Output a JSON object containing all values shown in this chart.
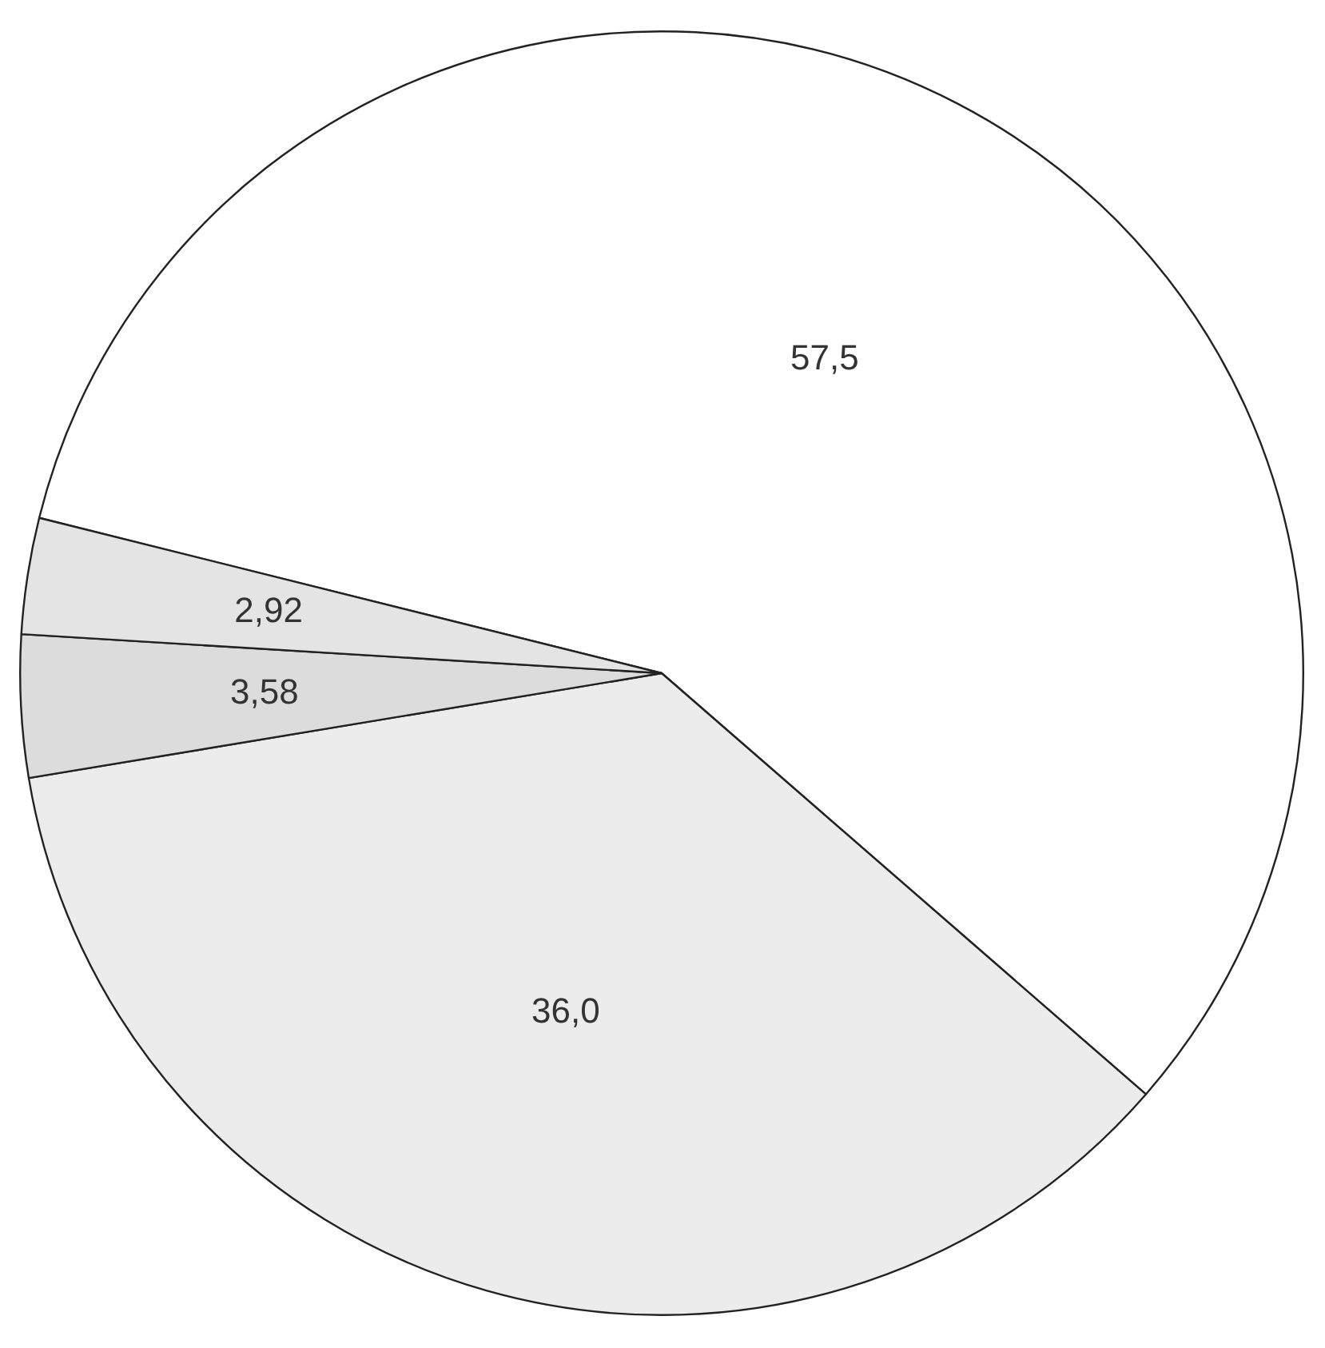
{
  "chart_data": {
    "type": "pie",
    "categories": [
      null,
      null,
      null,
      null
    ],
    "values": [
      57.5,
      36.0,
      3.58,
      2.92
    ],
    "value_labels": [
      "57,5",
      "36,0",
      "3,58",
      "2,92"
    ],
    "colors": [
      "#ffffff",
      "#ececec",
      "#dcdcdc",
      "#e4e4e4"
    ],
    "legend": false
  }
}
